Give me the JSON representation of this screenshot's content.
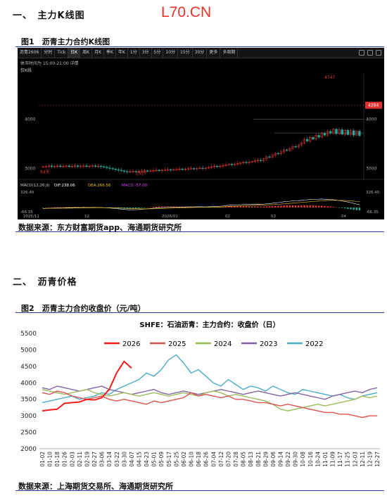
{
  "header": {
    "section1_title": "一、　主力K线图",
    "logo": "L70.CN"
  },
  "figure1": {
    "label": "图1　沥青主力合约K线图",
    "source": "数据来源：东方财富期货app、海通期货研究所",
    "toolbar": {
      "items": [
        "沥青2606",
        "分时",
        "Tick",
        "日K",
        "周K",
        "月K",
        "季K",
        "年K",
        "1分",
        "3分",
        "5分",
        "10分",
        "15分",
        "30分",
        "更多",
        "多周期"
      ],
      "active": "日K"
    },
    "status_text": "休市时间为 15:00-21:00 详情",
    "indicator_label": "仅K线",
    "price_levels": [
      "4000",
      "3000"
    ],
    "right_levels": [
      "4000",
      "3000"
    ],
    "high_label": "4747",
    "low_label": "2927",
    "left_low_label": "94天",
    "last_price": "4284",
    "macd_label": "MACD(12,26,9)",
    "macd_values": [
      "DIF:238.06",
      "DEA:266.56",
      "MACD:-57.00"
    ],
    "macd_top": "326.40",
    "macd_bottom": "-66.35",
    "x_ticks": [
      "2025/11",
      "12",
      "2026/01",
      "02",
      "03",
      "04"
    ],
    "colors": {
      "up": "#e53935",
      "down": "#26a69a",
      "dif": "#ffffff",
      "dea": "#f0c419"
    }
  },
  "section2_title": "二、　沥青价格",
  "figure2": {
    "label": "图2　沥青主力合约收盘价（元/吨）",
    "source": "数据来源：上海期货交易所、海通期货研究所"
  },
  "chart_data": [
    {
      "type": "line",
      "title": "SHFE：石油沥青：主力合约：收盘价（日）",
      "ylim": [
        2000,
        5500
      ],
      "yticks": [
        2000,
        2500,
        3000,
        3500,
        4000,
        4500,
        5000,
        5500
      ],
      "x": [
        "01-02",
        "01-10",
        "01-18",
        "01-26",
        "02-03",
        "02-11",
        "02-19",
        "02-27",
        "03-06",
        "03-14",
        "03-22",
        "03-30",
        "04-07",
        "04-15",
        "04-23",
        "05-01",
        "05-09",
        "05-17",
        "05-25",
        "06-02",
        "06-10",
        "06-18",
        "06-26",
        "07-04",
        "07-12",
        "07-20",
        "07-28",
        "08-05",
        "08-13",
        "08-21",
        "08-29",
        "09-06",
        "09-14",
        "09-22",
        "09-30",
        "10-08",
        "10-16",
        "10-24",
        "11-01",
        "11-09",
        "11-17",
        "11-25",
        "12-03",
        "12-11",
        "12-19",
        "12-27"
      ],
      "legend_position": "top",
      "series": [
        {
          "name": "2026",
          "color": "#ee1c1c",
          "values": [
            3150,
            3180,
            3200,
            3380,
            3400,
            3420,
            3500,
            3480,
            3550,
            3800,
            4300,
            4650,
            4450,
            null,
            null,
            null,
            null,
            null,
            null,
            null,
            null,
            null,
            null,
            null,
            null,
            null,
            null,
            null,
            null,
            null,
            null,
            null,
            null,
            null,
            null,
            null,
            null,
            null,
            null,
            null,
            null,
            null,
            null,
            null,
            null,
            null
          ]
        },
        {
          "name": "2025",
          "color": "#d9534f",
          "values": [
            3700,
            3650,
            3750,
            3700,
            3600,
            3550,
            3500,
            3550,
            3600,
            3500,
            3450,
            3500,
            3450,
            3400,
            3350,
            3450,
            3400,
            3450,
            3500,
            3550,
            3700,
            3600,
            3650,
            3600,
            3550,
            3600,
            3500,
            3500,
            3450,
            3400,
            3400,
            3350,
            3300,
            3350,
            3300,
            3250,
            3200,
            3150,
            3100,
            3100,
            3050,
            3050,
            3000,
            2950,
            3000,
            3000
          ]
        },
        {
          "name": "2024",
          "color": "#9bbb59",
          "values": [
            3800,
            3750,
            3700,
            3650,
            3700,
            3750,
            3800,
            3700,
            3650,
            3600,
            3650,
            3700,
            3650,
            3600,
            3650,
            3700,
            3650,
            3600,
            3650,
            3700,
            3650,
            3600,
            3700,
            3750,
            3700,
            3600,
            3650,
            3600,
            3550,
            3500,
            3450,
            3350,
            3200,
            3150,
            3200,
            3250,
            3300,
            3350,
            3300,
            3350,
            3400,
            3450,
            3500,
            3600,
            3550,
            3600
          ]
        },
        {
          "name": "2023",
          "color": "#8064a2",
          "values": [
            3850,
            3800,
            3900,
            3850,
            3800,
            3750,
            3800,
            3850,
            3900,
            3800,
            3750,
            3700,
            3650,
            3700,
            3750,
            3800,
            3700,
            3650,
            3700,
            3750,
            3700,
            3650,
            3700,
            3750,
            3800,
            3750,
            3700,
            3650,
            3700,
            3750,
            3700,
            3650,
            3600,
            3650,
            3700,
            3650,
            3600,
            3550,
            3500,
            3600,
            3650,
            3700,
            3750,
            3700,
            3800,
            3850
          ]
        },
        {
          "name": "2022",
          "color": "#4bacc6",
          "values": [
            3400,
            3450,
            3500,
            3550,
            3600,
            3500,
            3550,
            3600,
            3700,
            3650,
            3800,
            3900,
            4000,
            4100,
            4300,
            4200,
            4400,
            4700,
            4850,
            4600,
            4300,
            4400,
            4200,
            4000,
            3900,
            4100,
            3950,
            3800,
            3900,
            3850,
            3750,
            3900,
            3800,
            3700,
            3650,
            3800,
            3750,
            3700,
            3650,
            3600,
            3650,
            3550,
            3500,
            3600,
            3650,
            3700
          ]
        }
      ]
    }
  ]
}
